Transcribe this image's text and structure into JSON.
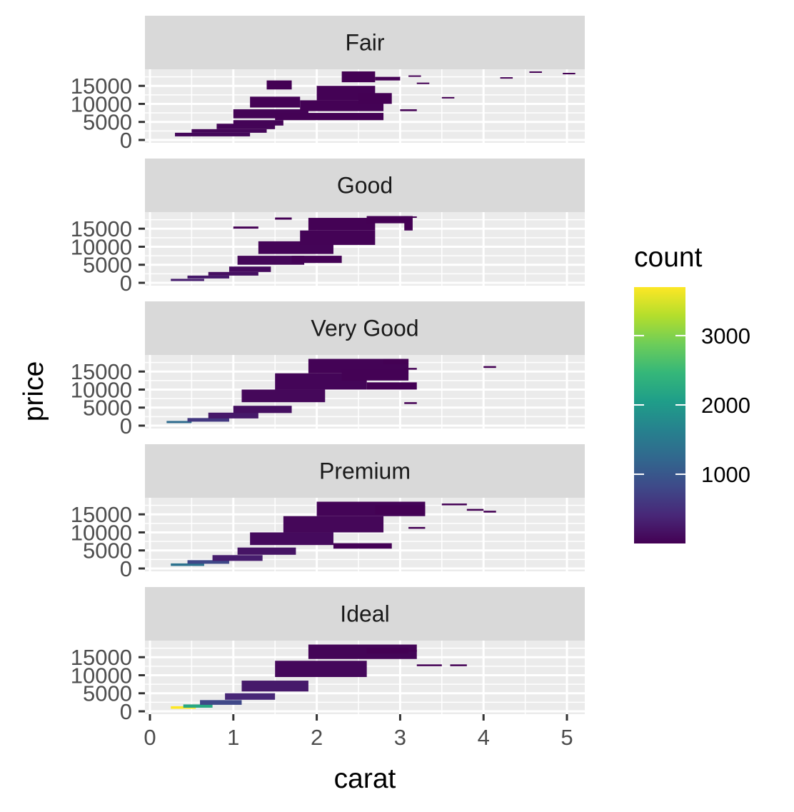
{
  "chart_data": {
    "type": "heatmap",
    "facet_var": "cut",
    "facets": [
      "Fair",
      "Good",
      "Very Good",
      "Premium",
      "Ideal"
    ],
    "xlabel": "carat",
    "ylabel": "price",
    "xlim": [
      0,
      5.2
    ],
    "ylim": [
      0,
      19000
    ],
    "x_ticks": [
      0,
      1,
      2,
      3,
      4,
      5
    ],
    "x_tick_labels": [
      "0",
      "1",
      "2",
      "3",
      "4",
      "5"
    ],
    "y_ticks": [
      0,
      5000,
      10000,
      15000
    ],
    "y_tick_labels": [
      "0",
      "5000",
      "10000",
      "15000"
    ],
    "legend": {
      "title": "count",
      "position": "right",
      "range": [
        1,
        3700
      ],
      "ticks": [
        1000,
        2000,
        3000
      ],
      "tick_labels": [
        "1000",
        "2000",
        "3000"
      ],
      "colors": [
        "#440154",
        "#482878",
        "#3E4A89",
        "#31688E",
        "#26828E",
        "#1F9E89",
        "#35B779",
        "#6DCD59",
        "#B4DE2C",
        "#FDE725"
      ]
    },
    "colors": {
      "panel_background": "#EBEBEB",
      "grid": "#FFFFFF",
      "strip_background": "#D9D9D9",
      "axis_text": "#4D4D4D"
    },
    "bins": {
      "Fair": [
        {
          "x": 0.3,
          "y": 1000,
          "w": 0.9,
          "h": 1000,
          "count": 80
        },
        {
          "x": 0.5,
          "y": 2000,
          "w": 0.9,
          "h": 1000,
          "count": 60
        },
        {
          "x": 0.8,
          "y": 3000,
          "w": 0.7,
          "h": 1500,
          "count": 40
        },
        {
          "x": 1.0,
          "y": 4000,
          "w": 0.6,
          "h": 1500,
          "count": 30
        },
        {
          "x": 1.0,
          "y": 6000,
          "w": 0.9,
          "h": 2500,
          "count": 20
        },
        {
          "x": 1.2,
          "y": 9000,
          "w": 0.6,
          "h": 3000,
          "count": 15
        },
        {
          "x": 1.5,
          "y": 5500,
          "w": 1.3,
          "h": 2000,
          "count": 15
        },
        {
          "x": 1.8,
          "y": 8000,
          "w": 1.0,
          "h": 3000,
          "count": 10
        },
        {
          "x": 2.0,
          "y": 11000,
          "w": 0.7,
          "h": 4000,
          "count": 8
        },
        {
          "x": 1.4,
          "y": 14000,
          "w": 0.3,
          "h": 2500,
          "count": 5
        },
        {
          "x": 2.3,
          "y": 16000,
          "w": 0.4,
          "h": 3000,
          "count": 5
        },
        {
          "x": 2.5,
          "y": 10000,
          "w": 0.4,
          "h": 3000,
          "count": 5
        },
        {
          "x": 2.7,
          "y": 16500,
          "w": 0.3,
          "h": 1000,
          "count": 3
        },
        {
          "x": 3.0,
          "y": 8000,
          "w": 0.2,
          "h": 500,
          "count": 2
        },
        {
          "x": 3.1,
          "y": 17500,
          "w": 0.15,
          "h": 400,
          "count": 1
        },
        {
          "x": 3.2,
          "y": 15500,
          "w": 0.15,
          "h": 400,
          "count": 1
        },
        {
          "x": 3.5,
          "y": 11500,
          "w": 0.15,
          "h": 400,
          "count": 1
        },
        {
          "x": 4.2,
          "y": 17000,
          "w": 0.15,
          "h": 400,
          "count": 1
        },
        {
          "x": 4.55,
          "y": 18600,
          "w": 0.15,
          "h": 400,
          "count": 1
        },
        {
          "x": 4.95,
          "y": 18200,
          "w": 0.15,
          "h": 400,
          "count": 1
        }
      ],
      "Good": [
        {
          "x": 0.25,
          "y": 500,
          "w": 0.4,
          "h": 600,
          "count": 300
        },
        {
          "x": 0.45,
          "y": 1200,
          "w": 0.5,
          "h": 800,
          "count": 250
        },
        {
          "x": 0.7,
          "y": 2000,
          "w": 0.6,
          "h": 1000,
          "count": 150
        },
        {
          "x": 0.95,
          "y": 3000,
          "w": 0.5,
          "h": 1500,
          "count": 100
        },
        {
          "x": 1.05,
          "y": 5000,
          "w": 0.8,
          "h": 2500,
          "count": 60
        },
        {
          "x": 1.3,
          "y": 8000,
          "w": 0.9,
          "h": 3500,
          "count": 30
        },
        {
          "x": 1.8,
          "y": 10500,
          "w": 0.9,
          "h": 4000,
          "count": 20
        },
        {
          "x": 1.9,
          "y": 14500,
          "w": 0.8,
          "h": 3500,
          "count": 10
        },
        {
          "x": 1.7,
          "y": 5500,
          "w": 0.6,
          "h": 2000,
          "count": 10
        },
        {
          "x": 2.6,
          "y": 16500,
          "w": 0.5,
          "h": 2000,
          "count": 4
        },
        {
          "x": 2.6,
          "y": 18000,
          "w": 0.6,
          "h": 400,
          "count": 3
        },
        {
          "x": 3.05,
          "y": 14500,
          "w": 0.1,
          "h": 4000,
          "count": 1
        },
        {
          "x": 1.0,
          "y": 15000,
          "w": 0.3,
          "h": 600,
          "count": 2
        },
        {
          "x": 1.5,
          "y": 17500,
          "w": 0.2,
          "h": 600,
          "count": 2
        }
      ],
      "Very Good": [
        {
          "x": 0.2,
          "y": 700,
          "w": 0.3,
          "h": 600,
          "count": 1300
        },
        {
          "x": 0.45,
          "y": 1100,
          "w": 0.5,
          "h": 1000,
          "count": 600
        },
        {
          "x": 0.7,
          "y": 2000,
          "w": 0.6,
          "h": 1600,
          "count": 250
        },
        {
          "x": 1.0,
          "y": 3500,
          "w": 0.7,
          "h": 2000,
          "count": 150
        },
        {
          "x": 1.1,
          "y": 6500,
          "w": 1.0,
          "h": 3500,
          "count": 70
        },
        {
          "x": 1.5,
          "y": 10000,
          "w": 1.1,
          "h": 4500,
          "count": 45
        },
        {
          "x": 1.9,
          "y": 14500,
          "w": 1.2,
          "h": 4000,
          "count": 25
        },
        {
          "x": 2.3,
          "y": 12500,
          "w": 0.8,
          "h": 3000,
          "count": 10
        },
        {
          "x": 2.6,
          "y": 10000,
          "w": 0.6,
          "h": 2000,
          "count": 4
        },
        {
          "x": 2.8,
          "y": 17000,
          "w": 0.3,
          "h": 1500,
          "count": 3
        },
        {
          "x": 3.05,
          "y": 15500,
          "w": 0.15,
          "h": 500,
          "count": 1
        },
        {
          "x": 3.05,
          "y": 6000,
          "w": 0.15,
          "h": 500,
          "count": 1
        },
        {
          "x": 4.0,
          "y": 16000,
          "w": 0.15,
          "h": 500,
          "count": 1
        }
      ],
      "Premium": [
        {
          "x": 0.25,
          "y": 700,
          "w": 0.4,
          "h": 700,
          "count": 1400
        },
        {
          "x": 0.45,
          "y": 1300,
          "w": 0.5,
          "h": 1000,
          "count": 800
        },
        {
          "x": 0.75,
          "y": 2100,
          "w": 0.6,
          "h": 1600,
          "count": 300
        },
        {
          "x": 1.05,
          "y": 3800,
          "w": 0.7,
          "h": 2000,
          "count": 200
        },
        {
          "x": 1.2,
          "y": 6500,
          "w": 1.0,
          "h": 3500,
          "count": 100
        },
        {
          "x": 1.6,
          "y": 10000,
          "w": 1.2,
          "h": 4500,
          "count": 60
        },
        {
          "x": 2.0,
          "y": 14500,
          "w": 1.3,
          "h": 4000,
          "count": 30
        },
        {
          "x": 2.2,
          "y": 5500,
          "w": 0.7,
          "h": 1500,
          "count": 8
        },
        {
          "x": 2.7,
          "y": 15000,
          "w": 0.6,
          "h": 2500,
          "count": 6
        },
        {
          "x": 3.1,
          "y": 11000,
          "w": 0.2,
          "h": 500,
          "count": 2
        },
        {
          "x": 3.5,
          "y": 17500,
          "w": 0.3,
          "h": 500,
          "count": 2
        },
        {
          "x": 3.8,
          "y": 16000,
          "w": 0.2,
          "h": 500,
          "count": 1
        },
        {
          "x": 4.0,
          "y": 15500,
          "w": 0.15,
          "h": 500,
          "count": 1
        }
      ],
      "Ideal": [
        {
          "x": 0.25,
          "y": 700,
          "w": 0.3,
          "h": 700,
          "count": 3700
        },
        {
          "x": 0.4,
          "y": 1000,
          "w": 0.35,
          "h": 900,
          "count": 2200
        },
        {
          "x": 0.6,
          "y": 1800,
          "w": 0.5,
          "h": 1300,
          "count": 800
        },
        {
          "x": 0.9,
          "y": 3200,
          "w": 0.6,
          "h": 1800,
          "count": 400
        },
        {
          "x": 1.1,
          "y": 5500,
          "w": 0.8,
          "h": 3000,
          "count": 250
        },
        {
          "x": 1.5,
          "y": 9500,
          "w": 1.1,
          "h": 4500,
          "count": 80
        },
        {
          "x": 1.9,
          "y": 14500,
          "w": 1.3,
          "h": 4000,
          "count": 40
        },
        {
          "x": 2.6,
          "y": 16000,
          "w": 0.5,
          "h": 1500,
          "count": 5
        },
        {
          "x": 2.9,
          "y": 16500,
          "w": 0.3,
          "h": 500,
          "count": 2
        },
        {
          "x": 3.2,
          "y": 12500,
          "w": 0.3,
          "h": 500,
          "count": 1
        },
        {
          "x": 3.6,
          "y": 12500,
          "w": 0.2,
          "h": 500,
          "count": 1
        }
      ]
    }
  }
}
